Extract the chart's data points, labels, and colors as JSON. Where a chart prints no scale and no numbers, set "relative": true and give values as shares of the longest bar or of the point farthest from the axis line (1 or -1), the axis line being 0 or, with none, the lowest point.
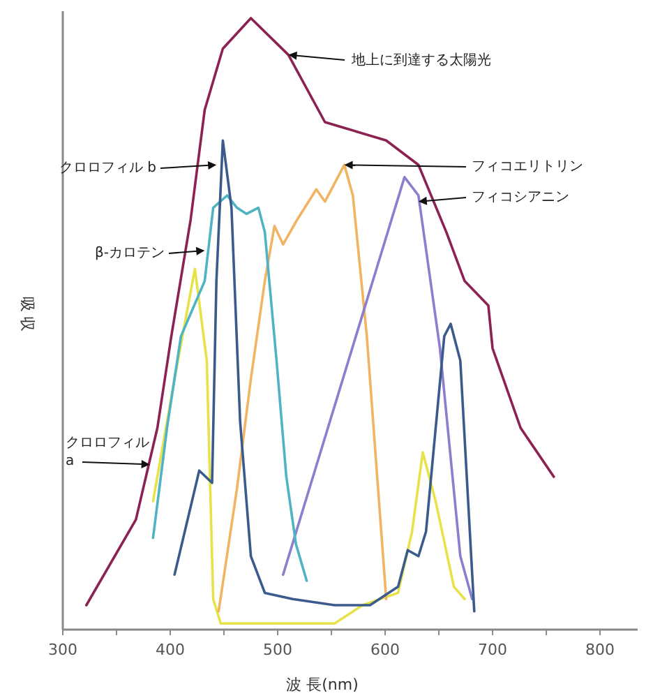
{
  "chart_data": {
    "type": "line",
    "relative": true,
    "xlabel": "波 長(nm)",
    "ylabel": "吸 収",
    "xlim": [
      300,
      835
    ],
    "xticks": [
      300,
      {
        "value": 350,
        "label": null
      },
      400,
      {
        "value": 450,
        "label": null
      },
      500,
      {
        "value": 550,
        "label": null
      },
      600,
      {
        "value": 650,
        "label": null
      },
      700,
      {
        "value": 750,
        "label": null
      },
      800
    ],
    "grid": false,
    "marker": "none",
    "line_style": "solid",
    "series": [
      {
        "color": "#8b2252",
        "x": [
          322,
          368,
          388,
          401,
          419,
          432,
          449,
          475,
          510,
          544,
          601,
          631,
          657,
          674,
          696,
          700,
          726,
          757
        ],
        "values": [
          0.04,
          0.18,
          0.33,
          0.48,
          0.67,
          0.85,
          0.95,
          1.0,
          0.94,
          0.83,
          0.8,
          0.76,
          0.65,
          0.57,
          0.53,
          0.46,
          0.33,
          0.25
        ]
      },
      {
        "color": "#e8e24a",
        "x": [
          384,
          404,
          423,
          434,
          440,
          447,
          501,
          553,
          579,
          612,
          625,
          635,
          647,
          664,
          674
        ],
        "values": [
          0.21,
          0.41,
          0.59,
          0.44,
          0.05,
          0.01,
          0.01,
          0.01,
          0.04,
          0.06,
          0.16,
          0.29,
          0.21,
          0.07,
          0.05
        ]
      },
      {
        "color": "#f0b462",
        "x": [
          445,
          462,
          475,
          488,
          497,
          505,
          518,
          536,
          544,
          562,
          570,
          583,
          601
        ],
        "values": [
          0.03,
          0.23,
          0.41,
          0.57,
          0.66,
          0.63,
          0.67,
          0.72,
          0.7,
          0.76,
          0.71,
          0.48,
          0.05
        ]
      },
      {
        "color": "#8a7fcf",
        "x": [
          505,
          618,
          631,
          651,
          670,
          681
        ],
        "values": [
          0.09,
          0.74,
          0.71,
          0.46,
          0.12,
          0.05
        ]
      },
      {
        "color": "#4fb3c4",
        "x": [
          384,
          397,
          410,
          432,
          440,
          453,
          462,
          471,
          482,
          488,
          499,
          508,
          517,
          527
        ],
        "values": [
          0.15,
          0.33,
          0.48,
          0.57,
          0.69,
          0.71,
          0.69,
          0.68,
          0.69,
          0.65,
          0.44,
          0.25,
          0.14,
          0.08
        ]
      },
      {
        "color": "#3b5b8c",
        "x": [
          404,
          427,
          439,
          443,
          449,
          457,
          465,
          475,
          488,
          514,
          553,
          586,
          612,
          621,
          631,
          638,
          655,
          661,
          670,
          683
        ],
        "values": [
          0.09,
          0.26,
          0.24,
          0.57,
          0.8,
          0.69,
          0.34,
          0.12,
          0.06,
          0.05,
          0.04,
          0.04,
          0.07,
          0.13,
          0.12,
          0.16,
          0.48,
          0.5,
          0.44,
          0.03
        ]
      }
    ],
    "annotations": [
      {
        "text": "地上に到達する太陽光",
        "x": 510,
        "y": 0.94
      },
      {
        "text": "クロロフィル b",
        "x": 443,
        "y": 0.76
      },
      {
        "text": "フィコエリトリン",
        "x": 562,
        "y": 0.76
      },
      {
        "text": "フィコシアニン",
        "x": 631,
        "y": 0.7
      },
      {
        "text": "β-カロテン",
        "x": 432,
        "y": 0.62
      },
      {
        "text": "クロロフィル a",
        "x": 381,
        "y": 0.27
      }
    ]
  }
}
